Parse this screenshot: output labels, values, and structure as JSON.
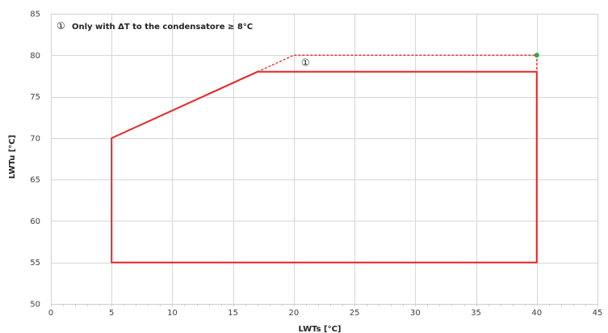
{
  "chart_data": {
    "type": "line",
    "title": "",
    "xlabel": "LWTs [°C]",
    "ylabel": "LWTu [°C]",
    "xlim": [
      0,
      45
    ],
    "ylim": [
      50,
      85
    ],
    "x_ticks": [
      0,
      5,
      10,
      15,
      20,
      25,
      30,
      35,
      40,
      45
    ],
    "y_ticks": [
      50,
      55,
      60,
      65,
      70,
      75,
      80,
      85
    ],
    "grid": true,
    "legend": "none",
    "note": "Only with ΔT to the condensatore ≥ 8°C",
    "note_marker": "①",
    "series": [
      {
        "style": "solid",
        "color": "#e52727",
        "points": [
          {
            "x": 5,
            "y": 55
          },
          {
            "x": 5,
            "y": 70
          },
          {
            "x": 17,
            "y": 78
          },
          {
            "x": 40,
            "y": 78
          },
          {
            "x": 40,
            "y": 55
          },
          {
            "x": 5,
            "y": 55
          }
        ]
      },
      {
        "style": "dashed",
        "color": "#e52727",
        "marker": "①",
        "points": [
          {
            "x": 17,
            "y": 78
          },
          {
            "x": 20,
            "y": 80
          },
          {
            "x": 40,
            "y": 80
          },
          {
            "x": 40,
            "y": 78
          }
        ]
      }
    ],
    "highlight_points": [
      {
        "x": 40,
        "y": 80,
        "color": "#2da84a"
      }
    ]
  }
}
